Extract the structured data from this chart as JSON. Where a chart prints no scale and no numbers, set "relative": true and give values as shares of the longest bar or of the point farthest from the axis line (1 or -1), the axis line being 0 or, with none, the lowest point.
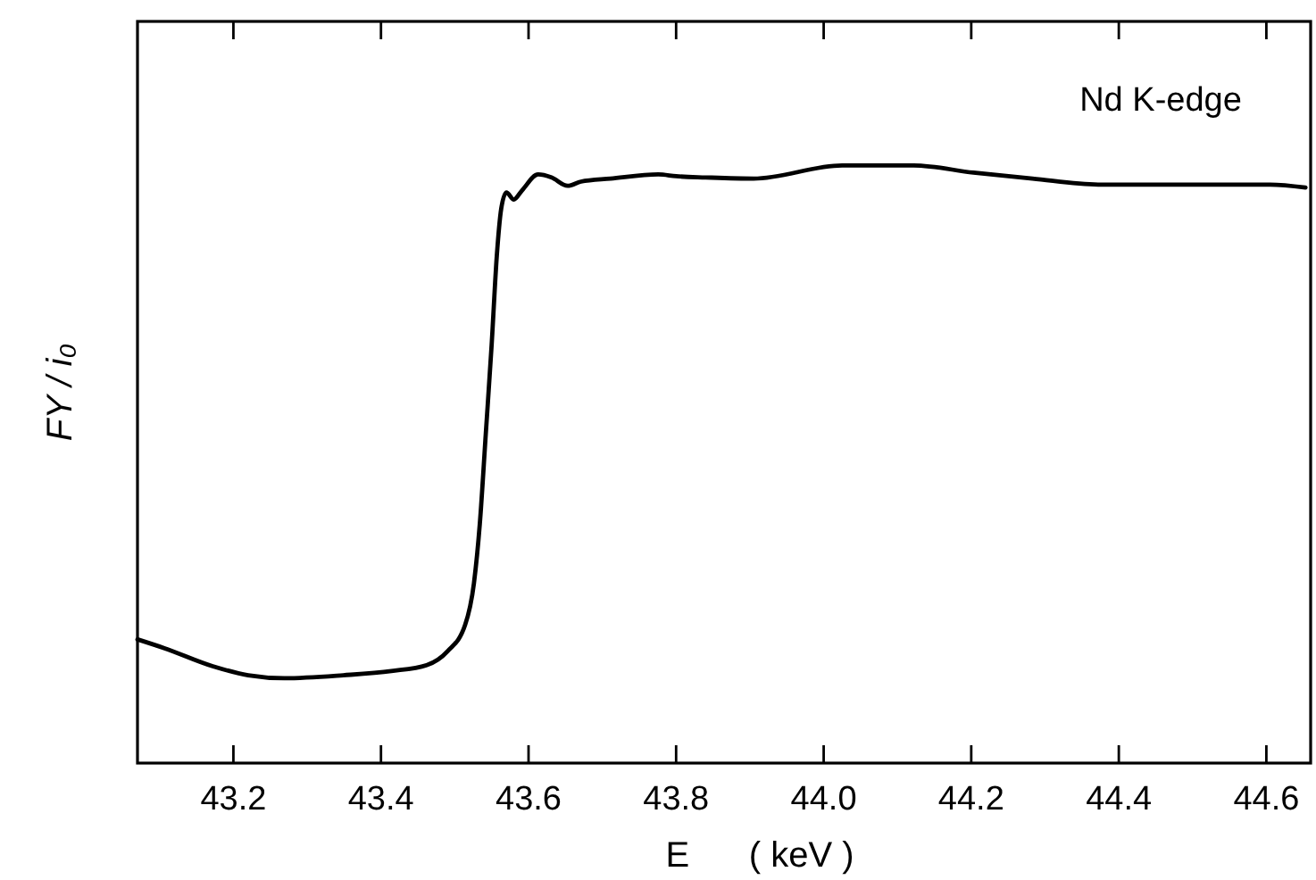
{
  "chart_data": {
    "type": "line",
    "relative": true,
    "xlabel": "E      ( keV )",
    "ylabel": "FY / i₀",
    "annotations": [
      "Nd K-edge"
    ],
    "xlim": [
      43.07,
      44.66
    ],
    "xticks": [
      43.2,
      43.4,
      43.6,
      43.8,
      {
        "value": 44,
        "label": "44.0"
      },
      44.2,
      44.4,
      44.6
    ],
    "tick_labels": "x",
    "grid": false,
    "marker": "none",
    "line_style": "solid",
    "series": [
      {
        "color": "#000000",
        "x": [
          43.07,
          43.107,
          43.172,
          43.22,
          43.269,
          43.349,
          43.414,
          43.462,
          43.49,
          43.514,
          43.526,
          43.534,
          43.542,
          43.55,
          43.557,
          43.563,
          43.57,
          43.58,
          43.591,
          43.613,
          43.631,
          43.653,
          43.671,
          43.711,
          43.776,
          43.8,
          43.84,
          43.905,
          44.025,
          44.122,
          44.203,
          44.283,
          44.372,
          44.484,
          44.605,
          44.653
        ],
        "values": [
          0.207,
          0.192,
          0.162,
          0.147,
          0.142,
          0.147,
          0.154,
          0.164,
          0.187,
          0.231,
          0.301,
          0.401,
          0.55,
          0.7,
          0.849,
          0.928,
          0.955,
          0.943,
          0.958,
          0.985,
          0.98,
          0.966,
          0.973,
          0.978,
          0.985,
          0.982,
          0.98,
          0.978,
          1,
          1,
          0.988,
          0.978,
          0.968,
          0.968,
          0.968,
          0.963
        ]
      }
    ]
  }
}
